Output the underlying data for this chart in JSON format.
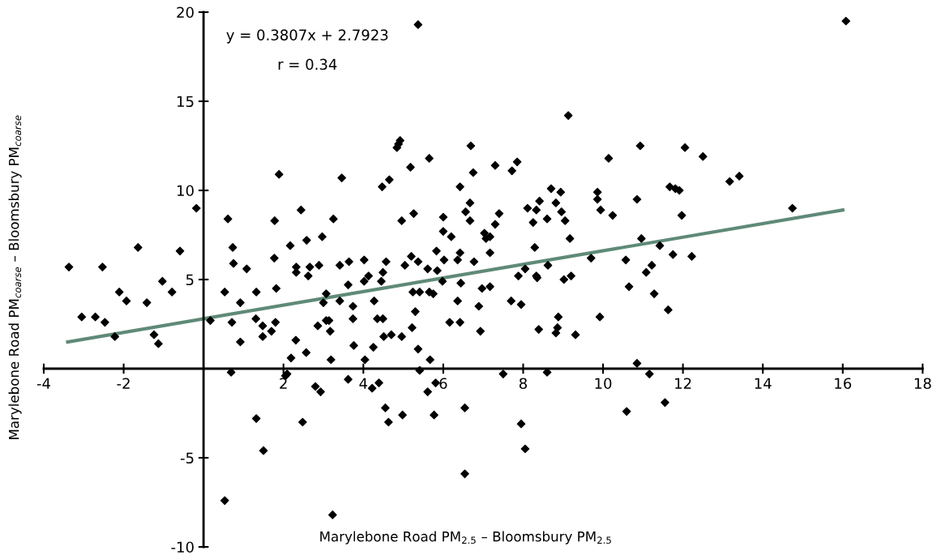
{
  "chart_data": {
    "type": "scatter",
    "xlabel": "Marylebone Road PM$_{2.5}$ – Bloomsbury PM$_{2.5}$",
    "ylabel": "Marylebone Road PM$_{coarse}$ – Bloomsbury PM$_{coarse}$",
    "annotations": [
      "y = 0.3807x + 2.7923",
      "r = 0.34"
    ],
    "xlim": [
      -4,
      18
    ],
    "xticks": [
      -4,
      -2,
      2,
      4,
      6,
      8,
      10,
      12,
      14,
      16,
      18
    ],
    "ylim": [
      -10,
      20
    ],
    "yticks": [
      -10,
      -5,
      5,
      10,
      15,
      20
    ],
    "grid": false,
    "legend": false,
    "series": [
      {
        "type": "scatter",
        "color": "#000000",
        "marker": "diamond",
        "x": [
          -0.18,
          1.89,
          0.61,
          1.78,
          2.44,
          3.25,
          3.46,
          -1.64,
          -0.59,
          0.73,
          2.17,
          2.58,
          2.97,
          -3.37,
          -2.53,
          0.75,
          1.08,
          1.77,
          2.32,
          2.32,
          2.66,
          2.62,
          2.89,
          3.41,
          -1.03,
          -2.11,
          -1.93,
          -1.42,
          -0.79,
          -3.05,
          -2.71,
          -2.47,
          -2.22,
          -1.24,
          -1.13,
          0.17,
          0.53,
          0.92,
          0.71,
          0.92,
          1.32,
          1.82,
          1.31,
          1.48,
          1.8,
          1.7,
          1.48,
          2.31,
          2.57,
          2.19,
          3.19,
          2.86,
          3.14,
          3.17,
          3.0,
          3.41,
          0.69,
          2.09,
          2.05,
          2.8,
          2.93,
          1.32,
          2.48,
          1.5,
          0.53,
          3.23,
          5.37,
          9.13,
          4.88,
          4.92,
          4.84,
          6.69,
          10.93,
          5.65,
          5.18,
          4.65,
          4.47,
          6.75,
          7.3,
          7.85,
          7.72,
          10.14,
          6.42,
          8.7,
          8.94,
          9.86,
          9.86,
          8.41,
          8.82,
          10.85,
          8.11,
          8.33,
          8.96,
          9.94,
          10.24,
          5.26,
          6.0,
          6.67,
          6.56,
          6.67,
          7.4,
          4.96,
          8.25,
          8.6,
          9.05,
          7.3,
          6.0,
          6.2,
          7.03,
          7.17,
          7.07,
          9.17,
          8.29,
          7.17,
          5.83,
          6.02,
          6.42,
          6.36,
          6.77,
          5.2,
          5.37,
          5.04,
          5.61,
          5.85,
          4.57,
          4.02,
          3.64,
          9.7,
          10.57,
          8.62,
          8.05,
          4.13,
          4.49,
          8.33,
          9.2,
          16.08,
          12.05,
          12.5,
          13.17,
          13.41,
          11.67,
          11.81,
          11.91,
          11.97,
          14.74,
          10.96,
          11.42,
          11.75,
          12.22,
          11.22,
          11.08,
          4.02,
          4.45,
          3.62,
          3.07,
          3.74,
          4.27,
          5.24,
          5.41,
          5.65,
          5.75,
          5.98,
          6.44,
          6.36,
          6.97,
          7.17,
          6.89,
          7.7,
          7.95,
          7.88,
          8.35,
          9.02,
          10.65,
          3.07,
          3.74,
          4.35,
          4.49,
          5.3,
          5.22,
          4.51,
          4.7,
          4.96,
          3.76,
          4.25,
          5.37,
          5.67,
          6.16,
          6.42,
          6.93,
          4.04,
          5.41,
          7.5,
          8.6,
          10.85,
          8.88,
          8.86,
          8.82,
          8.39,
          9.31,
          9.92,
          3.62,
          4.39,
          4.22,
          5.61,
          5.81,
          4.55,
          4.63,
          4.98,
          5.77,
          6.54,
          7.95,
          8.05,
          6.54,
          10.59,
          11.28,
          11.63,
          11.16,
          11.55
        ],
        "values": [
          9.0,
          10.9,
          8.4,
          8.3,
          8.9,
          8.4,
          10.7,
          6.8,
          6.6,
          6.8,
          6.9,
          7.2,
          7.4,
          5.7,
          5.7,
          5.9,
          5.6,
          6.2,
          5.7,
          5.4,
          5.7,
          5.2,
          5.8,
          5.8,
          4.9,
          4.3,
          3.8,
          3.7,
          4.3,
          2.9,
          2.9,
          2.6,
          1.8,
          1.9,
          1.4,
          2.7,
          4.3,
          3.7,
          2.6,
          1.5,
          4.3,
          4.5,
          2.8,
          2.4,
          2.6,
          2.1,
          1.8,
          1.6,
          0.9,
          0.6,
          0.5,
          2.4,
          2.7,
          2.1,
          3.7,
          3.8,
          -0.2,
          -0.3,
          -0.4,
          -1.0,
          -1.3,
          -2.8,
          -3.0,
          -4.6,
          -7.4,
          -8.2,
          19.3,
          14.2,
          12.6,
          12.8,
          12.4,
          12.5,
          12.5,
          11.8,
          11.3,
          10.6,
          10.2,
          11.0,
          11.4,
          11.6,
          11.1,
          11.8,
          10.2,
          10.1,
          9.9,
          9.9,
          9.5,
          9.4,
          9.3,
          9.5,
          9.0,
          8.9,
          8.8,
          8.9,
          8.6,
          8.7,
          8.5,
          9.3,
          8.8,
          8.3,
          8.7,
          8.3,
          8.2,
          8.4,
          8.3,
          8.1,
          7.7,
          7.4,
          7.6,
          7.4,
          7.3,
          7.3,
          6.8,
          6.5,
          6.6,
          6.1,
          6.5,
          6.1,
          6.0,
          6.3,
          6.0,
          5.8,
          5.6,
          5.5,
          6.0,
          6.1,
          6.0,
          6.2,
          6.1,
          5.8,
          5.6,
          5.2,
          5.4,
          5.2,
          5.2,
          19.5,
          12.4,
          11.9,
          10.5,
          10.8,
          10.2,
          10.1,
          10.0,
          8.6,
          9.0,
          7.3,
          6.9,
          6.4,
          6.3,
          5.8,
          5.4,
          4.9,
          4.9,
          4.7,
          4.2,
          3.5,
          3.8,
          4.3,
          4.3,
          4.3,
          4.2,
          4.9,
          4.8,
          3.8,
          4.5,
          4.6,
          3.5,
          3.8,
          3.6,
          5.2,
          5.1,
          5.0,
          4.6,
          2.7,
          2.8,
          2.8,
          2.8,
          3.2,
          2.3,
          1.8,
          1.9,
          1.8,
          1.3,
          1.2,
          1.1,
          0.5,
          2.6,
          2.6,
          2.1,
          0.5,
          -0.1,
          -0.3,
          -0.2,
          0.3,
          2.9,
          2.3,
          2.0,
          2.2,
          1.9,
          2.9,
          -0.6,
          -0.8,
          -1.1,
          -1.3,
          -0.8,
          -2.2,
          -3.0,
          -2.6,
          -2.6,
          -2.2,
          -3.1,
          -4.5,
          -5.9,
          -2.4,
          4.2,
          3.3,
          -0.3,
          -1.9
        ]
      },
      {
        "type": "line",
        "color": "#5f8a78",
        "marker": "none",
        "line_style": "solid",
        "x": [
          -3.4,
          16
        ],
        "values": [
          1.5,
          8.9
        ]
      }
    ]
  }
}
